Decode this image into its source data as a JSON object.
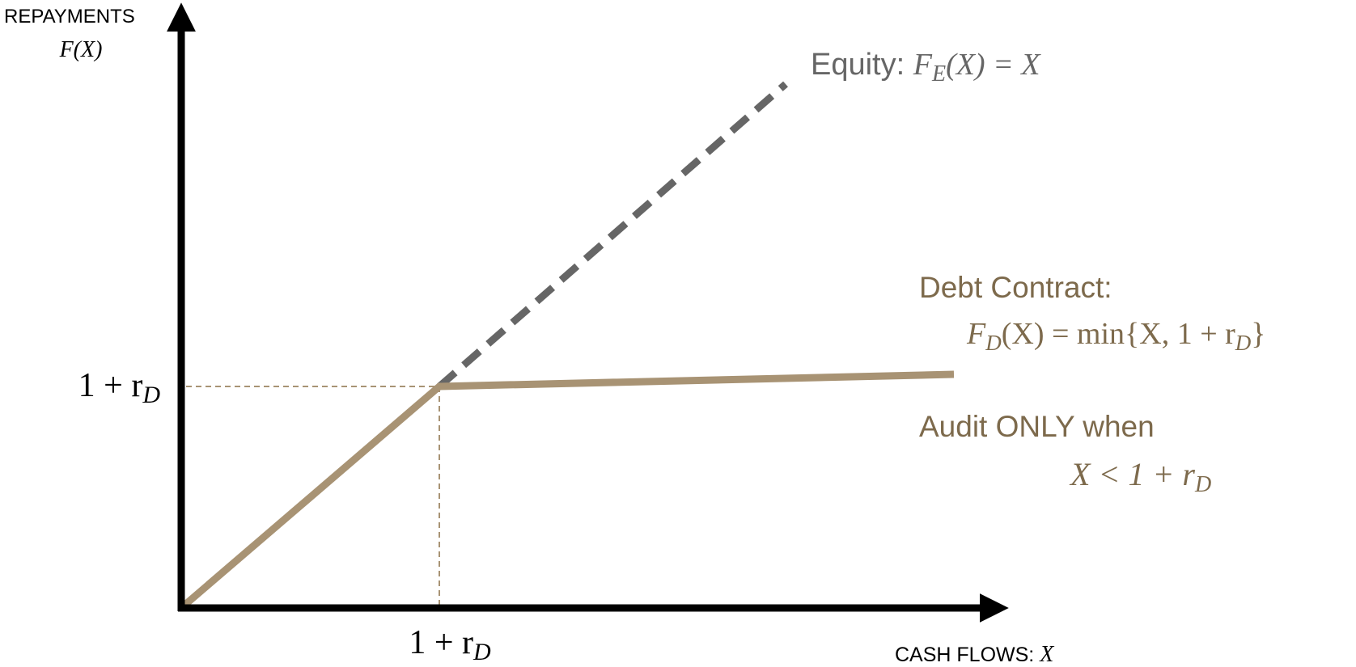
{
  "y_axis": {
    "title": "REPAYMENTS",
    "variable": "F(X)",
    "tick": [
      "1 + r",
      "D"
    ]
  },
  "x_axis": {
    "title": "CASH FLOWS: ",
    "variable": "X",
    "tick": [
      "1 + r",
      "D"
    ]
  },
  "equity": {
    "label": "Equity: ",
    "formula": [
      "F",
      "E",
      "(X) = X"
    ]
  },
  "debt": {
    "label": "Debt Contract:",
    "formula": [
      "F",
      "D",
      "(X) = min{X, 1 + r",
      "D",
      "}"
    ]
  },
  "audit": {
    "label": "Audit ONLY when",
    "condition": [
      "X < 1 + r",
      "D"
    ]
  }
}
